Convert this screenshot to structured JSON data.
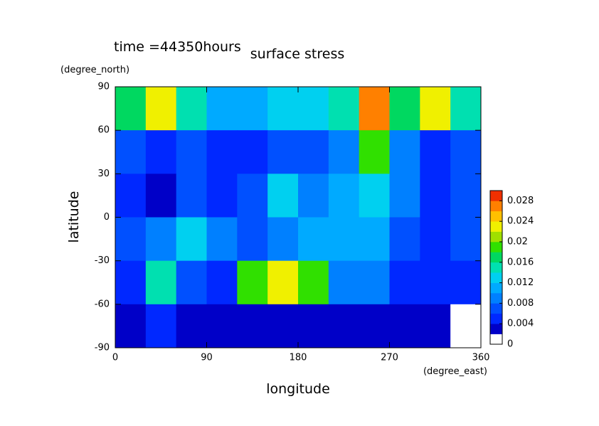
{
  "chart_data": {
    "type": "heatmap",
    "title": "surface stress",
    "subtitle": "time =44350hours",
    "x_label": "longitude",
    "x_unit": "(degree_east)",
    "y_label": "latitude",
    "y_unit": "(degree_north)",
    "xlim": [
      0,
      360
    ],
    "xticks": [
      0,
      90,
      180,
      270,
      360
    ],
    "ylim": [
      -90,
      90
    ],
    "yticks": [
      -90,
      -60,
      -30,
      0,
      30,
      60,
      90
    ],
    "x": [
      15,
      45,
      75,
      105,
      135,
      165,
      195,
      225,
      255,
      285,
      315,
      345
    ],
    "y": [
      75,
      45,
      15,
      -15,
      -45,
      -75
    ],
    "z": [
      [
        0.016,
        0.022,
        0.014,
        0.01,
        0.01,
        0.012,
        0.012,
        0.014,
        0.026,
        0.016,
        0.022,
        0.014
      ],
      [
        0.006,
        0.004,
        0.006,
        0.004,
        0.004,
        0.006,
        0.006,
        0.008,
        0.018,
        0.008,
        0.004,
        0.006
      ],
      [
        0.004,
        0.002,
        0.006,
        0.004,
        0.006,
        0.012,
        0.008,
        0.01,
        0.012,
        0.008,
        0.004,
        0.006
      ],
      [
        0.006,
        0.008,
        0.012,
        0.008,
        0.006,
        0.008,
        0.01,
        0.01,
        0.01,
        0.006,
        0.004,
        0.006
      ],
      [
        0.004,
        0.014,
        0.006,
        0.004,
        0.018,
        0.022,
        0.018,
        0.008,
        0.008,
        0.004,
        0.004,
        0.004
      ],
      [
        0.002,
        0.004,
        0.002,
        0.002,
        0.002,
        0.002,
        0.002,
        0.002,
        0.002,
        0.002,
        0.002,
        0
      ]
    ],
    "levels": [
      0,
      0.002,
      0.004,
      0.006,
      0.008,
      0.01,
      0.012,
      0.014,
      0.016,
      0.018,
      0.02,
      0.022,
      0.024,
      0.026,
      0.028,
      0.03
    ],
    "colors": [
      "#ffffff",
      "#0000c8",
      "#0028ff",
      "#0050ff",
      "#0080ff",
      "#00aaff",
      "#00d0f0",
      "#00e0b0",
      "#00d860",
      "#30e000",
      "#a0e000",
      "#f0f000",
      "#ffc000",
      "#ff8000",
      "#f03000"
    ],
    "clim": [
      0,
      0.03
    ],
    "cticks": [
      0,
      0.004,
      0.008,
      0.012,
      0.016,
      0.02,
      0.024,
      0.028
    ]
  }
}
